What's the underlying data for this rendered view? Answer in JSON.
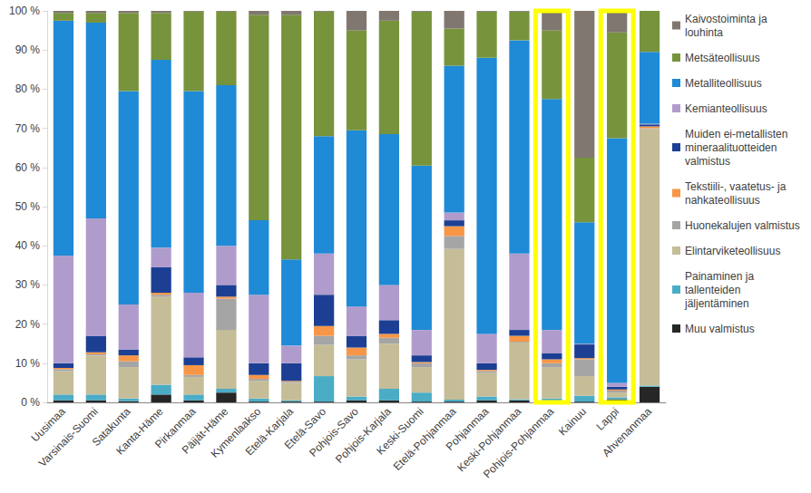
{
  "chart_data": {
    "type": "bar",
    "stacked": true,
    "grid": false,
    "legend": "right",
    "categories": [
      "Uusimaa",
      "Varsinais-Suomi",
      "Satakunta",
      "Kanta-Häme",
      "Pirkanmaa",
      "Päijät-Häme",
      "Kymenlaakso",
      "Etelä-Karjala",
      "Etelä-Savo",
      "Pohjois-Savo",
      "Pohjois-Karjala",
      "Keski-Suomi",
      "Etelä-Pohjanmaa",
      "Pohjanmaa",
      "Keski-Pohjanmaa",
      "Pohjois-Pohjanmaa",
      "Kainuu",
      "Lappi",
      "Ahvenanmaa"
    ],
    "highlight": [
      "Pohjois-Pohjanmaa",
      "Lappi"
    ],
    "ylim": [
      0,
      100
    ],
    "yticks": [
      {
        "value": 0,
        "label": "0 %"
      },
      {
        "value": 10,
        "label": "10 %"
      },
      {
        "value": 20,
        "label": "20 %"
      },
      {
        "value": 30,
        "label": "30 %"
      },
      {
        "value": 40,
        "label": "40 %"
      },
      {
        "value": 50,
        "label": "50 %"
      },
      {
        "value": 60,
        "label": "60 %"
      },
      {
        "value": 70,
        "label": "70 %"
      },
      {
        "value": 80,
        "label": "80 %"
      },
      {
        "value": 90,
        "label": "90 %"
      },
      {
        "value": 100,
        "label": "100 %"
      }
    ],
    "series": [
      {
        "name": "Muu valmistus",
        "color": "#262626",
        "values": [
          0.5,
          0.5,
          0.3,
          2,
          0.5,
          2.5,
          0.2,
          0.2,
          0.2,
          0.5,
          0.5,
          0.2,
          0.2,
          0.5,
          0.5,
          0.3,
          0.2,
          0.8,
          4
        ]
      },
      {
        "name": "Painaminen ja tallenteiden jäljentäminen",
        "color": "#4bacc6",
        "values": [
          1.5,
          1.5,
          0.7,
          2.5,
          1.5,
          1,
          0.8,
          0.3,
          6.5,
          1,
          3,
          2.3,
          0.5,
          1,
          0.3,
          0.7,
          1.5,
          0.5,
          0.3
        ]
      },
      {
        "name": "Elintarviketeollisuus",
        "color": "#c4bd97",
        "values": [
          6,
          10,
          8,
          22.5,
          4.5,
          15,
          4.5,
          4.5,
          8,
          9.5,
          11.5,
          6.5,
          38.5,
          6,
          14.5,
          8,
          5,
          1.2,
          65.5
        ]
      },
      {
        "name": "Huonekalujen valmistus",
        "color": "#a5a5a5",
        "values": [
          0.5,
          0.3,
          1.5,
          0.5,
          0.5,
          8,
          0.5,
          0.3,
          2.3,
          1,
          1.5,
          1,
          3.3,
          0.5,
          0.2,
          1,
          4.3,
          0.5,
          0.2
        ]
      },
      {
        "name": "Tekstiili-, vaatetus- ja nahkateollisuus",
        "color": "#f79646",
        "values": [
          0.3,
          0.5,
          1.5,
          0.5,
          2.5,
          0.5,
          1,
          0.2,
          2.5,
          2,
          1,
          0.3,
          2.5,
          0.3,
          1.5,
          1,
          0.3,
          0.3,
          0.5
        ]
      },
      {
        "name": "Muiden ei-metallisten mineraalituotteiden valmistus",
        "color": "#1c3f94",
        "values": [
          1.2,
          4.2,
          1.5,
          6.5,
          2,
          3,
          3,
          4.5,
          8,
          3,
          3.5,
          1.7,
          1.5,
          1.7,
          1.5,
          1.5,
          3.5,
          0.7,
          0.5
        ]
      },
      {
        "name": "Kemianteollisuus",
        "color": "#b09ccc",
        "values": [
          27.5,
          30,
          11.5,
          5,
          16.5,
          10,
          17.5,
          4.5,
          10.5,
          7.5,
          9,
          6.5,
          2,
          7.5,
          19.5,
          6,
          0.2,
          1,
          0.2
        ]
      },
      {
        "name": "Metalliteollisuus",
        "color": "#1f8ad6",
        "values": [
          60,
          50,
          54.5,
          48,
          51.5,
          41,
          19,
          22,
          30,
          45,
          38.5,
          42,
          37.5,
          70.5,
          54.5,
          59,
          31,
          62.5,
          18.3
        ]
      },
      {
        "name": "Metsäteollisuus",
        "color": "#77933c",
        "values": [
          2,
          2.5,
          20,
          12,
          20.3,
          18.8,
          52.5,
          62.5,
          31.8,
          25.5,
          29,
          39.3,
          9.5,
          11.8,
          7.3,
          17.5,
          16.5,
          27,
          10.5
        ]
      },
      {
        "name": "Kaivostoiminta ja louhinta",
        "color": "#7f7770",
        "values": [
          0.5,
          0.5,
          0.5,
          0.5,
          0.2,
          0.2,
          1,
          1,
          0.2,
          5,
          2.5,
          0.2,
          4.5,
          0.2,
          0.2,
          5,
          37.5,
          5.5,
          0
        ]
      }
    ]
  }
}
